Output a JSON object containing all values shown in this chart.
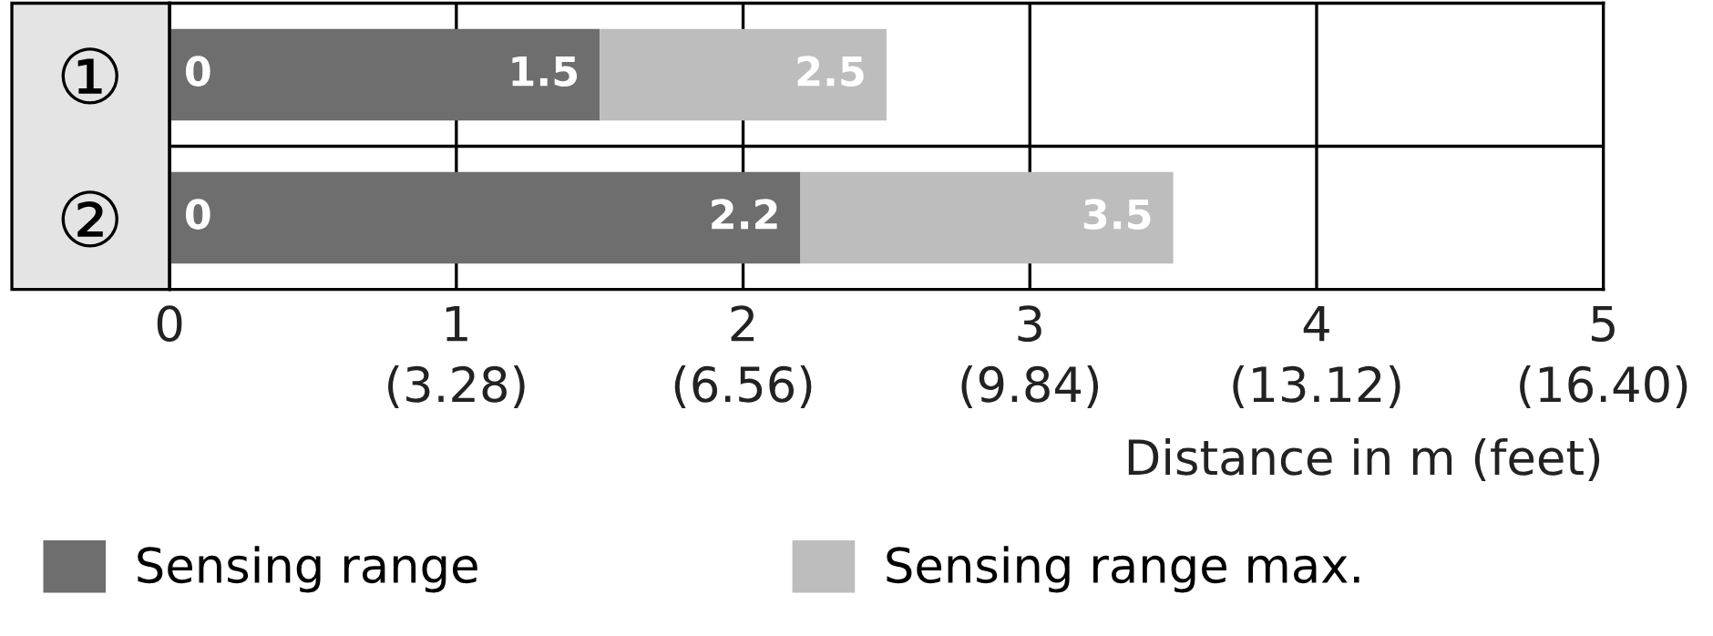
{
  "chart_data": {
    "type": "bar",
    "orientation": "horizontal",
    "stacked": true,
    "categories": [
      "①",
      "②"
    ],
    "series": [
      {
        "name": "Sensing range",
        "color": "#6e6e6e",
        "values": [
          1.5,
          2.2
        ]
      },
      {
        "name": "Sensing range max.",
        "color": "#bdbdbd",
        "values": [
          1.0,
          1.3
        ]
      }
    ],
    "annotations": [
      {
        "text": "0",
        "x": 0,
        "y": "①"
      },
      {
        "text": "1.5",
        "x": 1.5,
        "y": "①"
      },
      {
        "text": "2.5",
        "x": 2.5,
        "y": "①"
      },
      {
        "text": "0",
        "x": 0,
        "y": "②"
      },
      {
        "text": "2.2",
        "x": 2.2,
        "y": "②"
      },
      {
        "text": "3.5",
        "x": 3.5,
        "y": "②"
      }
    ],
    "xlim": [
      0,
      5
    ],
    "xticks": [
      0,
      1,
      2,
      3,
      4,
      5
    ],
    "x2lim": [
      0,
      16.4
    ],
    "x2ticks": [
      {
        "value": 3.28,
        "label": "(3.28)"
      },
      {
        "value": 6.56,
        "label": "(6.56)"
      },
      {
        "value": 9.84,
        "label": "(9.84)"
      },
      {
        "value": 13.12,
        "label": "(13.12)"
      },
      {
        "value": 16.4,
        "label": "(16.40)"
      }
    ],
    "xlabel": "Distance in m (feet)",
    "grid": true,
    "legend": "bottom"
  }
}
